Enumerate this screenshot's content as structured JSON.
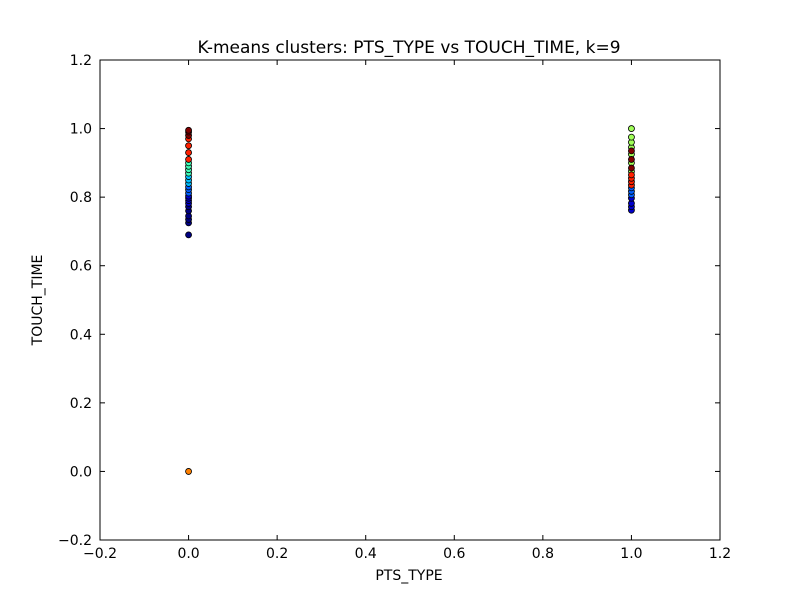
{
  "chart_data": {
    "type": "scatter",
    "title": "K-means clusters: PTS_TYPE vs TOUCH_TIME, k=9",
    "xlabel": "PTS_TYPE",
    "ylabel": "TOUCH_TIME",
    "xlim": [
      -0.2,
      1.2
    ],
    "ylim": [
      -0.2,
      1.2
    ],
    "x_ticks": [
      "−0.2",
      "0.0",
      "0.2",
      "0.4",
      "0.6",
      "0.8",
      "1.0",
      "1.2"
    ],
    "y_ticks": [
      "−0.2",
      "0.0",
      "0.2",
      "0.4",
      "0.6",
      "0.8",
      "1.0",
      "1.2"
    ],
    "grid": false,
    "legend": "none",
    "series": [
      {
        "color": "#000080",
        "points": [
          [
            0,
            0.69
          ],
          [
            0,
            0.725
          ],
          [
            0,
            0.735
          ],
          [
            0,
            0.745
          ],
          [
            0,
            0.76
          ],
          [
            0,
            0.772
          ]
        ]
      },
      {
        "color": "#0000cd",
        "points": [
          [
            0,
            0.782
          ],
          [
            0,
            0.79
          ],
          [
            0,
            0.797
          ],
          [
            0,
            0.803
          ],
          [
            1,
            0.762
          ],
          [
            1,
            0.772
          ],
          [
            1,
            0.782
          ],
          [
            1,
            0.797
          ]
        ]
      },
      {
        "color": "#0060ff",
        "points": [
          [
            0,
            0.812
          ],
          [
            0,
            0.822
          ],
          [
            0,
            0.83
          ],
          [
            1,
            0.807
          ],
          [
            1,
            0.817
          ],
          [
            1,
            0.827
          ]
        ]
      },
      {
        "color": "#00c0ff",
        "points": [
          [
            0,
            0.84
          ],
          [
            0,
            0.85
          ],
          [
            0,
            0.86
          ]
        ]
      },
      {
        "color": "#40ffb8",
        "points": [
          [
            0,
            0.87
          ],
          [
            0,
            0.88
          ],
          [
            0,
            0.89
          ],
          [
            0,
            0.9
          ]
        ]
      },
      {
        "color": "#a0ff58",
        "points": [
          [
            1,
            0.875
          ],
          [
            1,
            0.9
          ],
          [
            1,
            0.925
          ],
          [
            1,
            0.945
          ],
          [
            1,
            0.96
          ],
          [
            1,
            0.975
          ],
          [
            1,
            1.0
          ]
        ]
      },
      {
        "color": "#ff8000",
        "points": [
          [
            0,
            0.0
          ]
        ]
      },
      {
        "color": "#ff2000",
        "points": [
          [
            0,
            0.91
          ],
          [
            0,
            0.93
          ],
          [
            0,
            0.95
          ],
          [
            0,
            0.97
          ],
          [
            1,
            0.835
          ],
          [
            1,
            0.845
          ],
          [
            1,
            0.855
          ],
          [
            1,
            0.865
          ]
        ]
      },
      {
        "color": "#800000",
        "points": [
          [
            0,
            0.98
          ],
          [
            0,
            0.99
          ],
          [
            0,
            0.995
          ],
          [
            1,
            0.885
          ],
          [
            1,
            0.91
          ],
          [
            1,
            0.935
          ]
        ]
      }
    ]
  }
}
